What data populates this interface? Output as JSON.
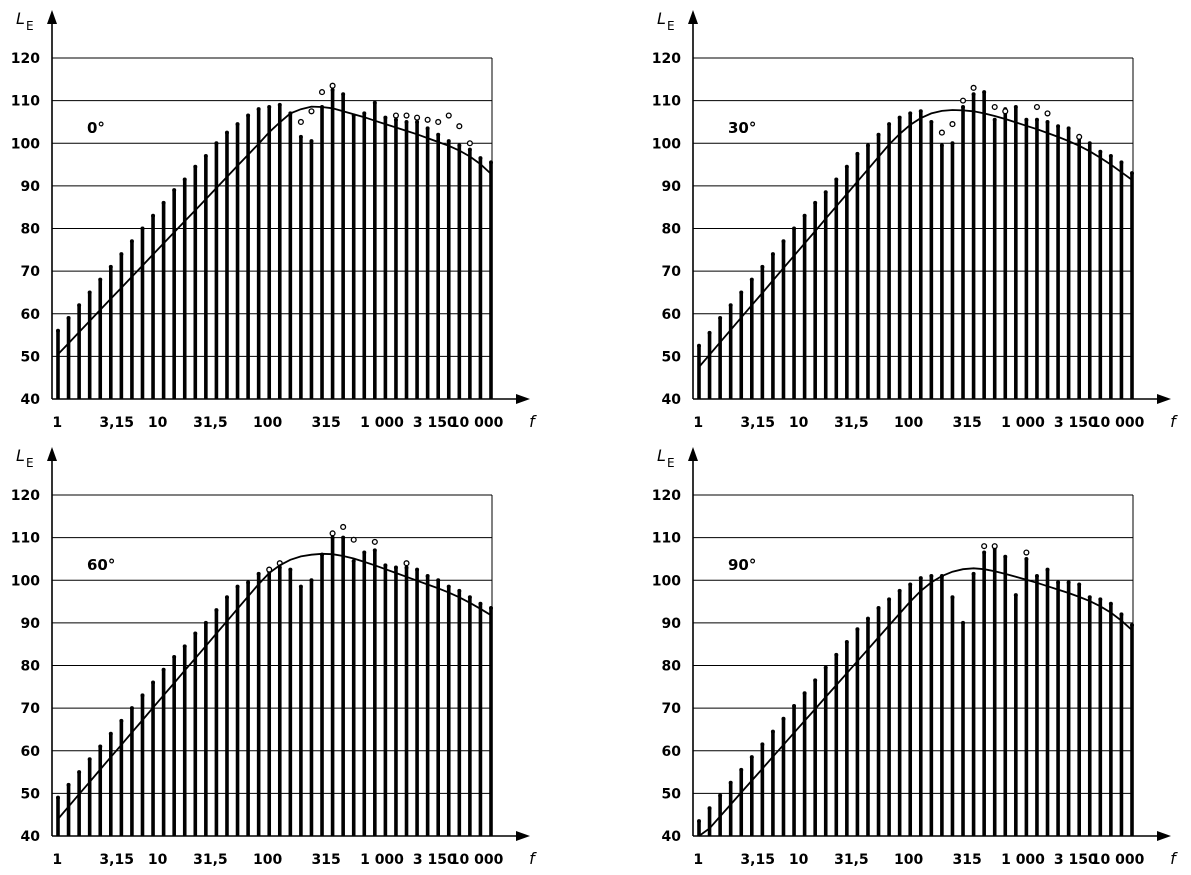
{
  "chart_data": [
    {
      "type": "bar",
      "annotation": "0°",
      "ylabel": "L",
      "ylabel_sub": "E",
      "xlabel": "f",
      "ylim": [
        40,
        120
      ],
      "yticks": [
        40,
        50,
        60,
        70,
        80,
        90,
        100,
        110,
        120
      ],
      "x_tick_labels": [
        "1",
        "3,15",
        "10",
        "31,5",
        "100",
        "315",
        "1 000",
        "3 150",
        "10 000"
      ],
      "grid": true,
      "series": [
        {
          "kind": "bar",
          "values": [
            56,
            59,
            62,
            65,
            68,
            71,
            74,
            77,
            80,
            83,
            86,
            89,
            91.5,
            94.5,
            97,
            100,
            102.5,
            104.5,
            106.5,
            108,
            108.5,
            109,
            107,
            101.5,
            100.5,
            108.5,
            112.5,
            111.5,
            106.5,
            107,
            109.5,
            106,
            105.5,
            105,
            105,
            103.5,
            102,
            100.5,
            99.5,
            98.5,
            96.5,
            95.5
          ]
        },
        {
          "kind": "open-circles",
          "values": [
            null,
            null,
            null,
            null,
            null,
            null,
            null,
            null,
            null,
            null,
            null,
            null,
            null,
            null,
            null,
            null,
            null,
            null,
            null,
            null,
            null,
            null,
            null,
            105,
            107.5,
            112,
            113.5,
            null,
            null,
            null,
            null,
            null,
            106.5,
            106.5,
            106,
            105.5,
            105,
            106.5,
            104,
            100,
            null,
            null
          ]
        },
        {
          "kind": "curve",
          "values": [
            50.5,
            53.1,
            55.7,
            58.3,
            60.9,
            63.5,
            66.1,
            68.7,
            71.3,
            73.9,
            76.5,
            79.1,
            81.7,
            84.3,
            86.9,
            89.5,
            92.1,
            94.7,
            97.3,
            99.9,
            102.6,
            104.9,
            107,
            108,
            108.6,
            108.5,
            108.2,
            107.5,
            106.8,
            106.1,
            105.3,
            104.5,
            103.7,
            102.9,
            102.1,
            101.2,
            100.3,
            99.4,
            98.3,
            96.9,
            95.1,
            92.8
          ]
        }
      ]
    },
    {
      "type": "bar",
      "annotation": "30°",
      "ylabel": "L",
      "ylabel_sub": "E",
      "xlabel": "f",
      "ylim": [
        40,
        120
      ],
      "yticks": [
        40,
        50,
        60,
        70,
        80,
        90,
        100,
        110,
        120
      ],
      "x_tick_labels": [
        "1",
        "3,15",
        "10",
        "31,5",
        "100",
        "315",
        "1 000",
        "3 150",
        "10 000"
      ],
      "grid": true,
      "series": [
        {
          "kind": "bar",
          "values": [
            52.5,
            55.5,
            59,
            62,
            65,
            68,
            71,
            74,
            77,
            80,
            83,
            86,
            88.5,
            91.5,
            94.5,
            97.5,
            99.5,
            102,
            104.5,
            106,
            107,
            107.5,
            105,
            99.5,
            100,
            108.5,
            111.5,
            112,
            105.5,
            108,
            108.5,
            105.5,
            105.5,
            105,
            104,
            103.5,
            101.5,
            100,
            98,
            97,
            95.5,
            93
          ]
        },
        {
          "kind": "open-circles",
          "values": [
            null,
            null,
            null,
            null,
            null,
            null,
            null,
            null,
            null,
            null,
            null,
            null,
            null,
            null,
            null,
            null,
            null,
            null,
            null,
            null,
            null,
            null,
            null,
            102.5,
            104.5,
            110,
            113,
            null,
            108.5,
            107.5,
            null,
            null,
            108.5,
            107,
            null,
            null,
            101.5,
            null,
            null,
            null,
            null,
            null
          ]
        },
        {
          "kind": "curve",
          "values": [
            47.5,
            50.4,
            53.3,
            56.2,
            59.1,
            62,
            64.9,
            67.8,
            70.7,
            73.6,
            76.5,
            79.4,
            82.3,
            85.2,
            88.1,
            91,
            93.9,
            96.8,
            99.7,
            102.2,
            104.3,
            105.9,
            107,
            107.6,
            107.8,
            107.7,
            107.5,
            107,
            106.4,
            105.7,
            104.9,
            104.1,
            103.3,
            102.4,
            101.5,
            100.5,
            99.4,
            98.1,
            96.6,
            95,
            93.2,
            91.4
          ]
        }
      ]
    },
    {
      "type": "bar",
      "annotation": "60°",
      "ylabel": "L",
      "ylabel_sub": "E",
      "xlabel": "f",
      "ylim": [
        40,
        120
      ],
      "yticks": [
        40,
        50,
        60,
        70,
        80,
        90,
        100,
        110,
        120
      ],
      "x_tick_labels": [
        "1",
        "3,15",
        "10",
        "31,5",
        "100",
        "315",
        "1 000",
        "3 150",
        "10 000"
      ],
      "grid": true,
      "series": [
        {
          "kind": "bar",
          "values": [
            49,
            52,
            55,
            58,
            61,
            64,
            67,
            70,
            73,
            76,
            79,
            82,
            84.5,
            87.5,
            90,
            93,
            96,
            98.5,
            99.5,
            101.5,
            102,
            103,
            102.5,
            98.5,
            100,
            106,
            110,
            110,
            104.5,
            106.5,
            107,
            103.5,
            103,
            103,
            102.5,
            101,
            100,
            98.5,
            97.5,
            96,
            94.5,
            93.5
          ]
        },
        {
          "kind": "open-circles",
          "values": [
            null,
            null,
            null,
            null,
            null,
            null,
            null,
            null,
            null,
            null,
            null,
            null,
            null,
            null,
            null,
            null,
            null,
            null,
            null,
            null,
            102.5,
            104,
            null,
            null,
            null,
            null,
            111,
            112.5,
            109.5,
            null,
            109,
            null,
            null,
            104,
            null,
            null,
            null,
            null,
            null,
            null,
            null,
            null
          ]
        },
        {
          "kind": "curve",
          "values": [
            44,
            46.9,
            49.8,
            52.7,
            55.6,
            58.5,
            61.4,
            64.3,
            67.2,
            70.1,
            73,
            75.9,
            78.8,
            81.7,
            84.6,
            87.5,
            90.4,
            93.3,
            96.2,
            99.1,
            101.7,
            103.5,
            104.8,
            105.6,
            106,
            106.2,
            106.1,
            105.7,
            105.1,
            104.3,
            103.5,
            102.6,
            101.7,
            100.8,
            99.9,
            99,
            98.1,
            97.1,
            96,
            94.7,
            93.3,
            91.8
          ]
        }
      ]
    },
    {
      "type": "bar",
      "annotation": "90°",
      "ylabel": "L",
      "ylabel_sub": "E",
      "xlabel": "f",
      "ylim": [
        40,
        120
      ],
      "yticks": [
        40,
        50,
        60,
        70,
        80,
        90,
        100,
        110,
        120
      ],
      "x_tick_labels": [
        "1",
        "3,15",
        "10",
        "31,5",
        "100",
        "315",
        "1 000",
        "3 150",
        "10 000"
      ],
      "grid": true,
      "series": [
        {
          "kind": "bar",
          "values": [
            43.5,
            46.5,
            49.5,
            52.5,
            55.5,
            58.5,
            61.5,
            64.5,
            67.5,
            70.5,
            73.5,
            76.5,
            79.5,
            82.5,
            85.5,
            88.5,
            91,
            93.5,
            95.5,
            97.5,
            99,
            100.5,
            101,
            101,
            96,
            90,
            101.5,
            106.5,
            107.5,
            105.5,
            96.5,
            105,
            101,
            102.5,
            99.5,
            99.5,
            99,
            96,
            95.5,
            94.5,
            92,
            89.5
          ]
        },
        {
          "kind": "open-circles",
          "values": [
            null,
            null,
            null,
            null,
            null,
            null,
            null,
            null,
            null,
            null,
            null,
            null,
            null,
            null,
            null,
            null,
            null,
            null,
            null,
            null,
            null,
            null,
            null,
            null,
            null,
            null,
            null,
            108,
            108,
            null,
            null,
            106.5,
            null,
            null,
            null,
            null,
            null,
            null,
            null,
            null,
            null,
            null
          ]
        },
        {
          "kind": "curve",
          "values": [
            39,
            41.8,
            44.6,
            47.4,
            50.2,
            53,
            55.8,
            58.6,
            61.4,
            64.2,
            67,
            69.8,
            72.6,
            75.4,
            78.2,
            81,
            83.8,
            86.6,
            89.4,
            92.2,
            95,
            97.5,
            99.5,
            101,
            102,
            102.6,
            102.8,
            102.6,
            102.1,
            101.5,
            100.8,
            100.1,
            99.4,
            98.6,
            97.8,
            97,
            96.1,
            95.1,
            93.9,
            92.4,
            90.5,
            88.3
          ]
        }
      ]
    }
  ]
}
